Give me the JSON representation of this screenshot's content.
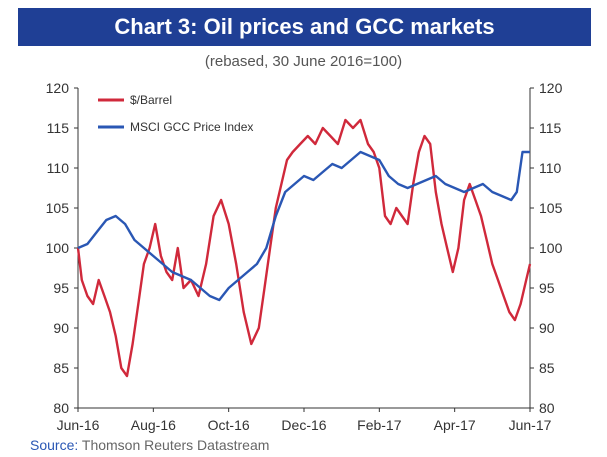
{
  "chart_data": {
    "type": "line",
    "title": "Chart 3: Oil prices and GCC markets",
    "subtitle": "(rebased, 30 June 2016=100)",
    "source_label": "Source:",
    "source_text": "Thomson Reuters Datastream",
    "x_tick_labels": [
      "Jun-16",
      "Aug-16",
      "Oct-16",
      "Dec-16",
      "Feb-17",
      "Apr-17",
      "Jun-17"
    ],
    "xlim": [
      0,
      12
    ],
    "ylim": [
      80,
      120
    ],
    "y_ticks": [
      80,
      85,
      90,
      95,
      100,
      105,
      110,
      115,
      120
    ],
    "y_tick_labels": [
      "80",
      "85",
      "90",
      "95",
      "100",
      "105",
      "110",
      "115",
      "120"
    ],
    "legend_position": "top-left",
    "grid": false,
    "colors": {
      "title_bg": "#1f3f95",
      "oil": "#d0293b",
      "gcc": "#2a57b4",
      "axis": "#333333"
    },
    "series": [
      {
        "name": "$/Barrel",
        "color": "#d0293b",
        "x": [
          0,
          0.1,
          0.25,
          0.4,
          0.55,
          0.7,
          0.85,
          1.0,
          1.15,
          1.3,
          1.45,
          1.6,
          1.75,
          1.9,
          2.05,
          2.2,
          2.35,
          2.5,
          2.65,
          2.8,
          3.0,
          3.2,
          3.4,
          3.6,
          3.8,
          4.0,
          4.2,
          4.4,
          4.6,
          4.8,
          4.95,
          5.1,
          5.25,
          5.4,
          5.55,
          5.7,
          5.9,
          6.1,
          6.3,
          6.5,
          6.7,
          6.9,
          7.1,
          7.3,
          7.5,
          7.7,
          7.85,
          8.0,
          8.15,
          8.3,
          8.45,
          8.6,
          8.75,
          8.9,
          9.05,
          9.2,
          9.35,
          9.5,
          9.65,
          9.8,
          9.95,
          10.1,
          10.25,
          10.4,
          10.55,
          10.7,
          10.85,
          11.0,
          11.15,
          11.3,
          11.45,
          11.6,
          11.75,
          11.9,
          12.0
        ],
        "values": [
          100,
          96,
          94,
          93,
          96,
          94,
          92,
          89,
          85,
          84,
          88,
          93,
          98,
          100,
          103,
          99,
          97,
          96,
          100,
          95,
          96,
          94,
          98,
          104,
          106,
          103,
          98,
          92,
          88,
          90,
          95,
          100,
          105,
          108,
          111,
          112,
          113,
          114,
          113,
          115,
          114,
          113,
          116,
          115,
          116,
          113,
          112,
          110,
          104,
          103,
          105,
          104,
          103,
          108,
          112,
          114,
          113,
          107,
          103,
          100,
          97,
          100,
          106,
          108,
          106,
          104,
          101,
          98,
          96,
          94,
          92,
          91,
          93,
          96,
          98
        ]
      },
      {
        "name": "MSCI GCC Price Index",
        "color": "#2a57b4",
        "x": [
          0,
          0.25,
          0.5,
          0.75,
          1.0,
          1.25,
          1.5,
          1.75,
          2.0,
          2.25,
          2.5,
          2.75,
          3.0,
          3.25,
          3.5,
          3.75,
          4.0,
          4.25,
          4.5,
          4.75,
          5.0,
          5.25,
          5.5,
          5.75,
          6.0,
          6.25,
          6.5,
          6.75,
          7.0,
          7.25,
          7.5,
          7.75,
          8.0,
          8.25,
          8.5,
          8.75,
          9.0,
          9.25,
          9.5,
          9.75,
          10.0,
          10.25,
          10.5,
          10.75,
          11.0,
          11.25,
          11.5,
          11.65,
          11.8,
          12.0
        ],
        "values": [
          100,
          100.5,
          102,
          103.5,
          104,
          103,
          101,
          100,
          99,
          98,
          97,
          96.5,
          96,
          95,
          94,
          93.5,
          95,
          96,
          97,
          98,
          100,
          104,
          107,
          108,
          109,
          108.5,
          109.5,
          110.5,
          110,
          111,
          112,
          111.5,
          111,
          109,
          108,
          107.5,
          108,
          108.5,
          109,
          108,
          107.5,
          107,
          107.5,
          108,
          107,
          106.5,
          106,
          107,
          112,
          112
        ]
      }
    ]
  }
}
